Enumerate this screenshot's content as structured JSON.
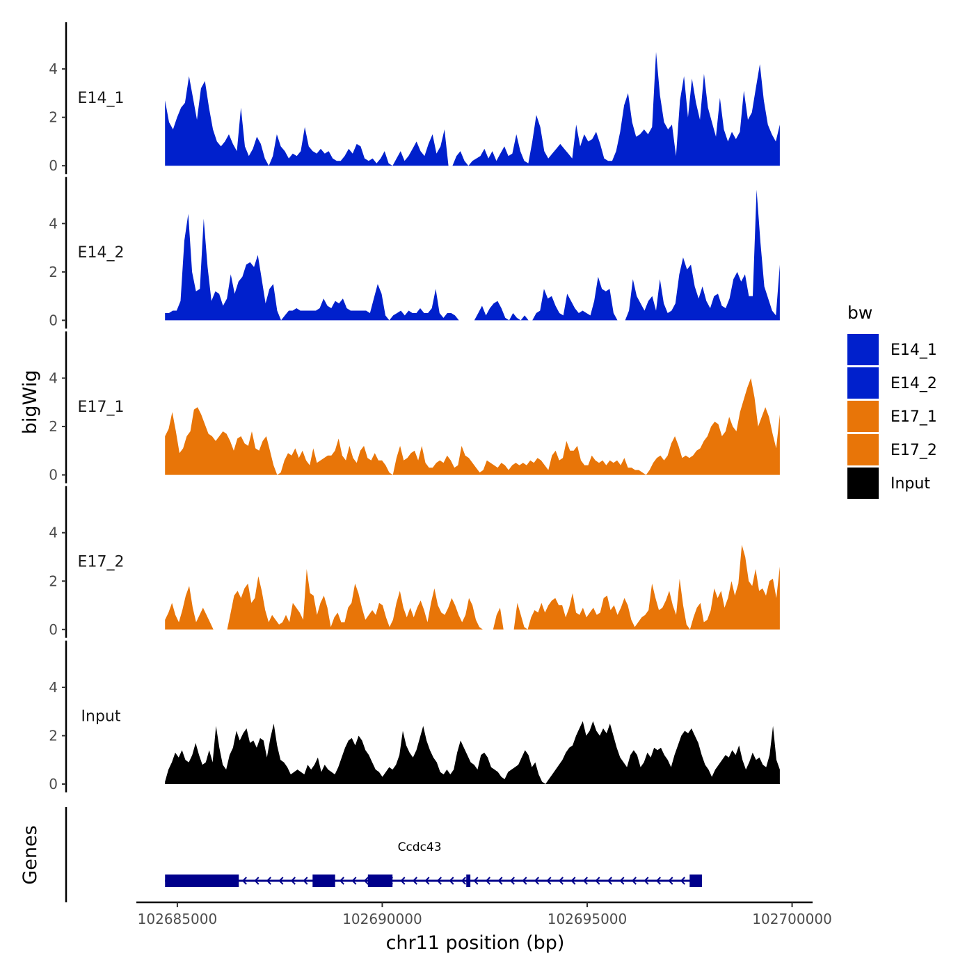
{
  "chart_data": {
    "type": "area",
    "ylabel": "bigWig",
    "xlabel": "chr11 position (bp)",
    "genes_label": "Genes",
    "ylim": [
      0,
      5.7
    ],
    "yticks": [
      0,
      2,
      4
    ],
    "xlim": [
      102684000,
      102700500
    ],
    "xticks": [
      102685000,
      102690000,
      102695000,
      102700000
    ],
    "x_range": [
      102684700,
      102699700
    ],
    "legend": {
      "title": "bw",
      "position": "right",
      "entries": [
        {
          "name": "E14_1",
          "color": "#0020CC"
        },
        {
          "name": "E14_2",
          "color": "#0020CC"
        },
        {
          "name": "E17_1",
          "color": "#E87508"
        },
        {
          "name": "E17_2",
          "color": "#E87508"
        },
        {
          "name": "Input",
          "color": "#000000"
        }
      ]
    },
    "tracks": [
      {
        "name": "E14_1",
        "color": "#0020CC",
        "values": [
          2.7,
          1.8,
          1.5,
          2.0,
          2.4,
          2.6,
          3.7,
          2.8,
          1.9,
          3.2,
          3.5,
          2.4,
          1.5,
          1.0,
          0.8,
          1.0,
          1.3,
          0.9,
          0.6,
          2.4,
          0.8,
          0.4,
          0.7,
          1.2,
          0.9,
          0.3,
          0,
          0.4,
          1.3,
          0.8,
          0.6,
          0.3,
          0.5,
          0.4,
          0.6,
          1.6,
          0.8,
          0.6,
          0.5,
          0.7,
          0.5,
          0.6,
          0.3,
          0.2,
          0.2,
          0.4,
          0.7,
          0.5,
          0.9,
          0.8,
          0.3,
          0.2,
          0.3,
          0.1,
          0.3,
          0.6,
          0.1,
          0,
          0.3,
          0.6,
          0.2,
          0.4,
          0.7,
          1.0,
          0.6,
          0.4,
          0.9,
          1.3,
          0.5,
          0.8,
          1.5,
          0,
          0,
          0.4,
          0.6,
          0.2,
          0,
          0.2,
          0.3,
          0.4,
          0.7,
          0.3,
          0.6,
          0.2,
          0.5,
          0.8,
          0.4,
          0.5,
          1.3,
          0.6,
          0.2,
          0.1,
          1.0,
          2.1,
          1.6,
          0.6,
          0.3,
          0.5,
          0.7,
          0.9,
          0.7,
          0.5,
          0.3,
          1.7,
          0.8,
          1.3,
          1.0,
          1.1,
          1.4,
          0.9,
          0.3,
          0.2,
          0.2,
          0.6,
          1.4,
          2.5,
          3.0,
          1.8,
          1.2,
          1.3,
          1.5,
          1.3,
          1.6,
          4.7,
          2.9,
          1.8,
          1.5,
          1.7,
          0.4,
          2.7,
          3.7,
          2.0,
          3.6,
          2.6,
          1.9,
          3.8,
          2.4,
          1.8,
          1.2,
          2.8,
          1.5,
          1.0,
          1.4,
          1.1,
          1.4,
          3.1,
          1.9,
          2.2,
          3.2,
          4.2,
          2.7,
          1.7,
          1.3,
          1.0,
          1.7
        ]
      },
      {
        "name": "E14_2",
        "color": "#0020CC",
        "values": [
          0.3,
          0.3,
          0.4,
          0.4,
          0.8,
          3.3,
          4.4,
          2.0,
          1.2,
          1.3,
          4.2,
          2.2,
          0.8,
          1.2,
          1.1,
          0.6,
          0.9,
          1.9,
          1.1,
          1.6,
          1.8,
          2.3,
          2.4,
          2.2,
          2.7,
          1.7,
          0.7,
          1.3,
          1.5,
          0.4,
          0,
          0.2,
          0.4,
          0.4,
          0.5,
          0.4,
          0.4,
          0.4,
          0.4,
          0.4,
          0.5,
          0.9,
          0.6,
          0.5,
          0.8,
          0.7,
          0.9,
          0.5,
          0.4,
          0.4,
          0.4,
          0.4,
          0.4,
          0.3,
          0.9,
          1.5,
          1.1,
          0.2,
          0,
          0.2,
          0.3,
          0.4,
          0.2,
          0.4,
          0.3,
          0.3,
          0.5,
          0.3,
          0.3,
          0.5,
          1.3,
          0.3,
          0.1,
          0.3,
          0.3,
          0.2,
          0,
          0,
          0,
          0,
          0,
          0.3,
          0.6,
          0.2,
          0.5,
          0.7,
          0.8,
          0.5,
          0.1,
          0,
          0.3,
          0.1,
          0,
          0.2,
          0,
          0,
          0.3,
          0.4,
          1.3,
          0.9,
          1.0,
          0.6,
          0.3,
          0.2,
          1.1,
          0.8,
          0.5,
          0.3,
          0.4,
          0.3,
          0.2,
          0.8,
          1.8,
          1.3,
          1.2,
          1.3,
          0.3,
          0,
          0,
          0,
          0.4,
          1.7,
          1.0,
          0.7,
          0.4,
          0.8,
          1.0,
          0.4,
          1.7,
          0.7,
          0.3,
          0.4,
          0.7,
          1.9,
          2.6,
          2.1,
          2.3,
          1.4,
          0.9,
          1.4,
          0.8,
          0.5,
          1.0,
          1.1,
          0.6,
          0.5,
          0.9,
          1.7,
          2.0,
          1.6,
          1.9,
          1.0,
          1.0,
          5.4,
          3.2,
          1.4,
          0.9,
          0.4,
          0.2,
          2.3
        ]
      },
      {
        "name": "E17_1",
        "color": "#E87508",
        "values": [
          1.6,
          1.9,
          2.6,
          1.8,
          0.9,
          1.1,
          1.6,
          1.8,
          2.7,
          2.8,
          2.5,
          2.1,
          1.7,
          1.6,
          1.4,
          1.6,
          1.8,
          1.7,
          1.4,
          1.0,
          1.5,
          1.6,
          1.3,
          1.2,
          1.8,
          1.1,
          1.0,
          1.4,
          1.6,
          1.0,
          0.4,
          0,
          0.1,
          0.6,
          0.9,
          0.8,
          1.1,
          0.7,
          1.0,
          0.6,
          0.4,
          1.1,
          0.5,
          0.6,
          0.7,
          0.8,
          0.8,
          1.0,
          1.5,
          0.8,
          0.6,
          1.2,
          0.7,
          0.5,
          1.0,
          1.2,
          0.7,
          0.6,
          0.9,
          0.6,
          0.6,
          0.4,
          0.1,
          0,
          0.7,
          1.2,
          0.6,
          0.7,
          0.9,
          1.0,
          0.6,
          1.2,
          0.5,
          0.3,
          0.3,
          0.5,
          0.6,
          0.5,
          0.8,
          0.6,
          0.3,
          0.4,
          1.2,
          0.8,
          0.7,
          0.5,
          0.3,
          0.1,
          0.2,
          0.6,
          0.5,
          0.4,
          0.3,
          0.5,
          0.4,
          0.2,
          0.4,
          0.5,
          0.4,
          0.5,
          0.4,
          0.6,
          0.5,
          0.7,
          0.6,
          0.4,
          0.2,
          0.8,
          1.0,
          0.6,
          0.7,
          1.4,
          1.0,
          1.0,
          1.2,
          0.6,
          0.4,
          0.4,
          0.8,
          0.6,
          0.5,
          0.6,
          0.4,
          0.6,
          0.5,
          0.6,
          0.4,
          0.7,
          0.3,
          0.3,
          0.2,
          0.2,
          0.1,
          0,
          0.2,
          0.5,
          0.7,
          0.8,
          0.6,
          0.8,
          1.3,
          1.6,
          1.2,
          0.7,
          0.8,
          0.7,
          0.8,
          1.0,
          1.1,
          1.4,
          1.6,
          2.0,
          2.2,
          2.1,
          1.6,
          1.8,
          2.4,
          2.0,
          1.8,
          2.6,
          3.1,
          3.6,
          4.0,
          3.2,
          2.0,
          2.4,
          2.8,
          2.4,
          1.7,
          1.1,
          2.5
        ]
      },
      {
        "name": "E17_2",
        "color": "#E87508",
        "values": [
          0.4,
          0.7,
          1.1,
          0.6,
          0.3,
          0.8,
          1.4,
          1.8,
          0.9,
          0.3,
          0.6,
          0.9,
          0.6,
          0.3,
          0,
          0,
          0,
          0,
          0,
          0.7,
          1.4,
          1.6,
          1.3,
          1.7,
          1.9,
          1.1,
          1.3,
          2.2,
          1.6,
          0.8,
          0.3,
          0.6,
          0.4,
          0.2,
          0.3,
          0.6,
          0.3,
          1.1,
          0.9,
          0.7,
          0.4,
          2.5,
          1.5,
          1.4,
          0.6,
          1.1,
          1.4,
          0.9,
          0.1,
          0.5,
          0.7,
          0.3,
          0.3,
          0.9,
          1.1,
          1.9,
          1.5,
          0.9,
          0.4,
          0.6,
          0.8,
          0.6,
          1.1,
          1.0,
          0.5,
          0.1,
          0.4,
          1.1,
          1.6,
          0.9,
          0.5,
          0.9,
          0.5,
          0.9,
          1.2,
          0.8,
          0.3,
          1.1,
          1.7,
          1.0,
          0.7,
          0.6,
          0.9,
          1.3,
          1.0,
          0.6,
          0.3,
          0.6,
          1.3,
          1.0,
          0.4,
          0.1,
          0,
          0,
          0,
          0,
          0.6,
          0.9,
          0,
          0,
          0,
          0,
          1.1,
          0.6,
          0.1,
          0,
          0.5,
          0.8,
          0.7,
          1.1,
          0.7,
          1.0,
          1.2,
          1.3,
          1.0,
          1.0,
          0.5,
          0.9,
          1.5,
          0.7,
          0.6,
          0.9,
          0.5,
          0.7,
          0.9,
          0.6,
          0.7,
          1.3,
          1.4,
          0.8,
          1.0,
          0.6,
          0.9,
          1.3,
          1.0,
          0.4,
          0.1,
          0.3,
          0.5,
          0.6,
          0.8,
          1.9,
          1.3,
          0.8,
          0.9,
          1.2,
          1.6,
          1.0,
          0.6,
          2.1,
          1.0,
          0.2,
          0,
          0.5,
          0.9,
          1.1,
          0.3,
          0.4,
          0.8,
          1.7,
          1.3,
          1.6,
          0.9,
          1.3,
          2.0,
          1.4,
          1.9,
          3.5,
          3.0,
          2.0,
          1.8,
          2.5,
          1.6,
          1.7,
          1.4,
          2.0,
          2.1,
          1.3,
          2.6
        ]
      },
      {
        "name": "Input",
        "color": "#000000",
        "values": [
          0.1,
          0.6,
          0.9,
          1.3,
          1.1,
          1.4,
          1.0,
          0.9,
          1.2,
          1.7,
          1.2,
          0.8,
          0.9,
          1.4,
          0.9,
          2.4,
          1.5,
          0.8,
          0.6,
          1.2,
          1.5,
          2.2,
          1.8,
          2.1,
          2.3,
          1.7,
          1.8,
          1.5,
          1.9,
          1.8,
          1.1,
          1.9,
          2.5,
          1.6,
          1.0,
          0.9,
          0.7,
          0.4,
          0.5,
          0.6,
          0.5,
          0.4,
          0.8,
          0.6,
          0.8,
          1.1,
          0.5,
          0.8,
          0.6,
          0.5,
          0.4,
          0.7,
          1.1,
          1.5,
          1.8,
          1.9,
          1.6,
          2.0,
          1.8,
          1.4,
          1.2,
          0.9,
          0.6,
          0.5,
          0.3,
          0.5,
          0.7,
          0.6,
          0.8,
          1.2,
          2.2,
          1.6,
          1.3,
          1.1,
          1.4,
          1.9,
          2.4,
          1.8,
          1.4,
          1.1,
          0.9,
          0.5,
          0.4,
          0.6,
          0.4,
          0.6,
          1.3,
          1.8,
          1.5,
          1.2,
          0.9,
          0.8,
          0.6,
          1.2,
          1.3,
          1.1,
          0.7,
          0.6,
          0.5,
          0.3,
          0.2,
          0.5,
          0.6,
          0.7,
          0.8,
          1.1,
          1.4,
          1.2,
          0.7,
          0.9,
          0.4,
          0.1,
          0,
          0.2,
          0.4,
          0.6,
          0.8,
          1.0,
          1.3,
          1.5,
          1.6,
          2.0,
          2.3,
          2.6,
          2.0,
          2.2,
          2.6,
          2.2,
          2.0,
          2.3,
          2.1,
          2.5,
          2.0,
          1.5,
          1.1,
          0.9,
          0.7,
          1.2,
          1.4,
          1.2,
          0.7,
          0.9,
          1.3,
          1.1,
          1.5,
          1.4,
          1.5,
          1.2,
          1.0,
          0.7,
          1.2,
          1.6,
          2.0,
          2.2,
          2.1,
          2.3,
          2.0,
          1.7,
          1.2,
          0.8,
          0.6,
          0.3,
          0.6,
          0.8,
          1.0,
          1.2,
          1.1,
          1.4,
          1.2,
          1.6,
          1.0,
          0.6,
          0.9,
          1.3,
          1.0,
          1.1,
          0.8,
          0.7,
          1.2,
          2.4,
          1.0,
          0.6
        ]
      }
    ],
    "gene": {
      "name": "Ccdc43",
      "start": 102684700,
      "end": 102697800,
      "exons": [
        [
          102684700,
          102686500
        ],
        [
          102688300,
          102688850
        ],
        [
          102689650,
          102690250
        ],
        [
          102692050,
          102692150
        ],
        [
          102697500,
          102697800
        ]
      ]
    }
  }
}
